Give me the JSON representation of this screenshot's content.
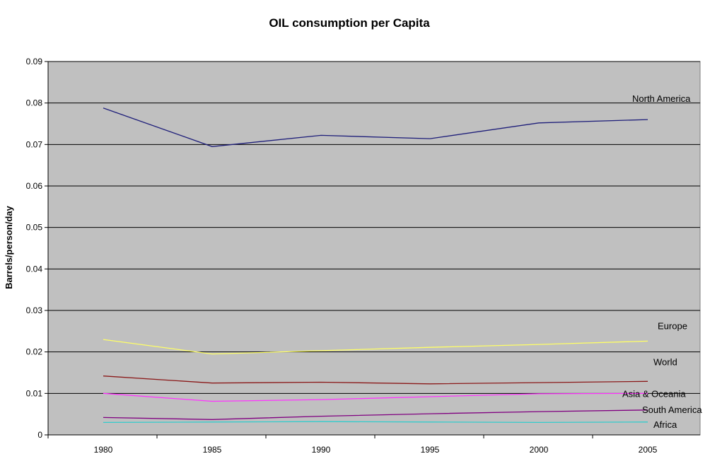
{
  "chart_data": {
    "type": "line",
    "title": "OIL consumption per Capita",
    "xlabel": "",
    "ylabel": "Barrels/person/day",
    "x": [
      1980,
      1985,
      1990,
      1995,
      2000,
      2005
    ],
    "x_ticks": [
      "1980",
      "1985",
      "1990",
      "1995",
      "2000",
      "2005"
    ],
    "ylim": [
      0,
      0.09
    ],
    "y_ticks": [
      "0",
      "0.01",
      "0.02",
      "0.03",
      "0.04",
      "0.05",
      "0.06",
      "0.07",
      "0.08",
      "0.09"
    ],
    "grid": true,
    "plot_background": "#c0c0c0",
    "legend": "inline labels at right end of lines",
    "series": [
      {
        "name": "North America",
        "color": "#1f1f7a",
        "values": [
          0.0788,
          0.0695,
          0.0722,
          0.0714,
          0.0752,
          0.076
        ]
      },
      {
        "name": "Europe",
        "color": "#ffff66",
        "values": [
          0.023,
          0.0195,
          0.0203,
          0.0211,
          0.0218,
          0.0226
        ]
      },
      {
        "name": "World",
        "color": "#8b1a1a",
        "values": [
          0.0142,
          0.0125,
          0.0127,
          0.0123,
          0.0126,
          0.0129
        ]
      },
      {
        "name": "Asia & Oceania",
        "color": "#ff33ff",
        "values": [
          0.01,
          0.0081,
          0.0085,
          0.0092,
          0.0099,
          0.01
        ]
      },
      {
        "name": "South America",
        "color": "#800080",
        "values": [
          0.0042,
          0.0037,
          0.0045,
          0.0051,
          0.0056,
          0.006
        ]
      },
      {
        "name": "Africa",
        "color": "#33cccc",
        "values": [
          0.003,
          0.0031,
          0.0032,
          0.0031,
          0.003,
          0.0031
        ]
      }
    ]
  }
}
